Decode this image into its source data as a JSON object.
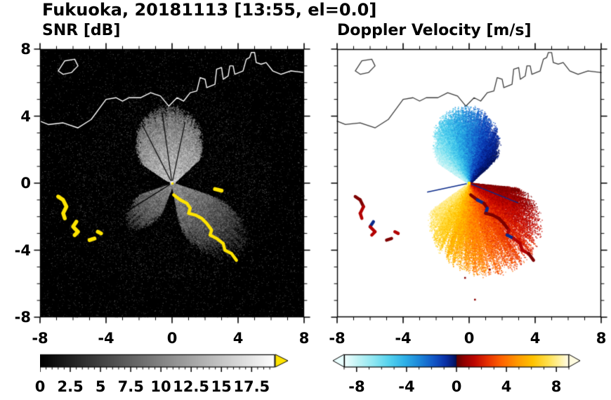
{
  "figure_title": "Fukuoka, 20181113 [13:55, el=0.0]",
  "panels": [
    {
      "title": "SNR [dB]",
      "x_tick_labels": [
        "-8",
        "-4",
        "0",
        "4",
        "8"
      ],
      "y_tick_labels": [
        "8",
        "4",
        "0",
        "-4",
        "-8"
      ],
      "colorbar_tick_labels": [
        "0",
        "2.5",
        "5",
        "7.5",
        "10",
        "12.5",
        "15",
        "17.5"
      ]
    },
    {
      "title": "Doppler Velocity [m/s]",
      "x_tick_labels": [
        "-8",
        "-4",
        "0",
        "4",
        "8"
      ],
      "colorbar_tick_labels": [
        "-8",
        "-4",
        "0",
        "4",
        "8"
      ]
    }
  ],
  "coastline": {
    "main": [
      [
        -8,
        3.7
      ],
      [
        -7.5,
        3.5
      ],
      [
        -6.6,
        3.6
      ],
      [
        -5.7,
        3.3
      ],
      [
        -4.9,
        3.8
      ],
      [
        -4.0,
        5.0
      ],
      [
        -3.4,
        5.1
      ],
      [
        -3.0,
        4.9
      ],
      [
        -2.6,
        5.1
      ],
      [
        -1.9,
        5.1
      ],
      [
        -1.3,
        5.4
      ],
      [
        -0.7,
        5.2
      ],
      [
        -0.2,
        4.6
      ],
      [
        0.3,
        5.1
      ],
      [
        0.7,
        4.9
      ],
      [
        1.1,
        5.4
      ],
      [
        1.5,
        5.5
      ],
      [
        1.7,
        6.3
      ],
      [
        2.0,
        6.2
      ],
      [
        2.1,
        5.7
      ],
      [
        2.6,
        5.9
      ],
      [
        2.7,
        6.8
      ],
      [
        3.0,
        6.9
      ],
      [
        3.1,
        6.2
      ],
      [
        3.4,
        6.4
      ],
      [
        3.5,
        7.0
      ],
      [
        3.7,
        7.0
      ],
      [
        3.8,
        6.5
      ],
      [
        4.3,
        6.7
      ],
      [
        4.5,
        7.4
      ],
      [
        4.7,
        7.5
      ],
      [
        4.8,
        7.8
      ],
      [
        5.0,
        7.8
      ],
      [
        5.1,
        7.2
      ],
      [
        5.4,
        7.1
      ],
      [
        5.7,
        7.2
      ],
      [
        6.1,
        6.7
      ],
      [
        6.6,
        6.5
      ],
      [
        7.2,
        6.7
      ],
      [
        8.0,
        6.6
      ]
    ],
    "island": [
      [
        -6.9,
        6.7
      ],
      [
        -6.5,
        7.3
      ],
      [
        -5.9,
        7.4
      ],
      [
        -5.7,
        7.0
      ],
      [
        -6.1,
        6.6
      ],
      [
        -6.6,
        6.5
      ],
      [
        -6.9,
        6.7
      ]
    ]
  },
  "chart_data": [
    {
      "type": "heatmap",
      "title": "SNR [dB]",
      "background": "#000000",
      "xlim": [
        -8,
        8
      ],
      "ylim": [
        -8,
        8
      ],
      "x_ticks": [
        -8,
        -4,
        0,
        4,
        8
      ],
      "y_ticks": [
        -8,
        -4,
        0,
        4,
        8
      ],
      "minor_tick_step": 1,
      "colorbar": {
        "colormap": "grayscale black to white",
        "range": [
          0,
          17.5
        ],
        "ticks": [
          0,
          2.5,
          5,
          7.5,
          10,
          12.5,
          15,
          17.5
        ],
        "over_range_arrow": "#ffe400"
      },
      "radar_center": [
        0,
        0
      ],
      "echo_fans": [
        {
          "name": "north fan",
          "angle_range_deg_cw_from_north": [
            -57,
            48
          ],
          "max_radius": 4.8,
          "appearance": "feathery gray, brighter near radar"
        },
        {
          "name": "southeast wedge",
          "angle_range_deg_cw_from_north": [
            108,
            170
          ],
          "max_radius": 5.8,
          "appearance": "dim gray"
        },
        {
          "name": "southwest wedge",
          "angle_range_deg_cw_from_north": [
            200,
            252
          ],
          "max_radius": 3.8,
          "appearance": "dim gray"
        }
      ],
      "dark_rays": [
        [
          238,
          3.5
        ],
        [
          252,
          4
        ],
        [
          262,
          3
        ],
        [
          270,
          4.3
        ],
        [
          277,
          3.4
        ],
        [
          284,
          2.5
        ],
        [
          -27,
          4
        ],
        [
          -8,
          4.3
        ],
        [
          12,
          3.8
        ]
      ],
      "overrange_color": "#ffe400",
      "overrange_paths": [
        [
          [
            0.1,
            -0.7
          ],
          [
            0.5,
            -1
          ],
          [
            0.9,
            -1.2
          ],
          [
            1.1,
            -1.5
          ],
          [
            1,
            -1.8
          ],
          [
            1.4,
            -1.9
          ],
          [
            1.8,
            -2.1
          ],
          [
            2.1,
            -2.4
          ],
          [
            2.4,
            -2.8
          ],
          [
            2.3,
            -3.1
          ],
          [
            2.7,
            -3.3
          ],
          [
            3.1,
            -3.6
          ],
          [
            3.2,
            -4
          ],
          [
            3.6,
            -4.2
          ],
          [
            3.9,
            -4.6
          ]
        ],
        [
          [
            -6.9,
            -0.8
          ],
          [
            -6.6,
            -1
          ],
          [
            -6.4,
            -1.4
          ],
          [
            -6.6,
            -1.8
          ],
          [
            -6.5,
            -2.1
          ]
        ],
        [
          [
            -5.8,
            -2.3
          ],
          [
            -6,
            -2.6
          ],
          [
            -5.7,
            -2.9
          ],
          [
            -5.9,
            -3.1
          ]
        ],
        [
          [
            -5,
            -3.4
          ],
          [
            -4.7,
            -3.3
          ]
        ],
        [
          [
            -4.5,
            -2.9
          ],
          [
            -4.3,
            -3
          ]
        ],
        [
          [
            2.6,
            -0.35
          ],
          [
            3,
            -0.45
          ]
        ]
      ]
    },
    {
      "type": "heatmap",
      "title": "Doppler Velocity [m/s]",
      "background": "#ffffff",
      "xlim": [
        -8,
        8
      ],
      "ylim": [
        -8,
        8
      ],
      "x_ticks": [
        -8,
        -4,
        0,
        4,
        8
      ],
      "y_ticks": [
        -8,
        -4,
        0,
        4,
        8
      ],
      "minor_tick_step": 1,
      "colorbar": {
        "range": [
          -9,
          9
        ],
        "ticks": [
          -8,
          -4,
          0,
          4,
          8
        ],
        "end_arrows": true,
        "colormap": "pale cyan-blue-navy for negative velocities, dark red-orange-yellow-pale for positive"
      },
      "colorbar_stops": [
        {
          "p": 0,
          "c": "#f2ffff"
        },
        {
          "p": 0.06,
          "c": "#c2f3f5"
        },
        {
          "p": 0.13,
          "c": "#8fe7f2"
        },
        {
          "p": 0.2,
          "c": "#55d2ee"
        },
        {
          "p": 0.27,
          "c": "#2eb0e7"
        },
        {
          "p": 0.34,
          "c": "#1b83d8"
        },
        {
          "p": 0.4,
          "c": "#1256c6"
        },
        {
          "p": 0.45,
          "c": "#0a31a8"
        },
        {
          "p": 0.485,
          "c": "#051a74"
        },
        {
          "p": 0.499,
          "c": "#030f4e"
        },
        {
          "p": 0.501,
          "c": "#5a0000"
        },
        {
          "p": 0.53,
          "c": "#8c0000"
        },
        {
          "p": 0.58,
          "c": "#bd0600"
        },
        {
          "p": 0.64,
          "c": "#e73100"
        },
        {
          "p": 0.7,
          "c": "#ff6300"
        },
        {
          "p": 0.77,
          "c": "#ff9800"
        },
        {
          "p": 0.84,
          "c": "#ffc300"
        },
        {
          "p": 0.91,
          "c": "#ffe151"
        },
        {
          "p": 0.96,
          "c": "#fff2a3"
        },
        {
          "p": 1,
          "c": "#fffceb"
        }
      ],
      "neg_colors": [
        "#cdf6f7",
        "#9febf3",
        "#63d8ef",
        "#36bce9",
        "#2093dd",
        "#1663cb",
        "#0c39b0",
        "#071f86",
        "#041257"
      ],
      "pos_colors": [
        "#7e0000",
        "#a80000",
        "#cf1000",
        "#ee3d00",
        "#ff6d00",
        "#ff9b00",
        "#ffc300",
        "#ffdf4a",
        "#fff0a0"
      ],
      "velocity_fans": [
        {
          "name": "negative (toward-radar) fan",
          "angle_range_deg_cw_from_north": [
            -57,
            48
          ],
          "max_radius": 4.8,
          "appearance": "pale cyan on west side grading to dark navy on east side"
        },
        {
          "name": "positive (away-from-radar) fan",
          "angle_range_deg_cw_from_north": [
            95,
            235
          ],
          "max_radius": 5.8,
          "appearance": "dark red near east edge grading through orange to pale yellow toward southwest"
        }
      ],
      "needles": [
        [
          258,
          2.6
        ],
        [
          112,
          3.2
        ]
      ],
      "specks": [
        [
          0.3,
          -6.9
        ],
        [
          1.2,
          -5.1
        ],
        [
          -0.3,
          -5.6
        ]
      ],
      "target_color": "#8b0000"
    }
  ]
}
